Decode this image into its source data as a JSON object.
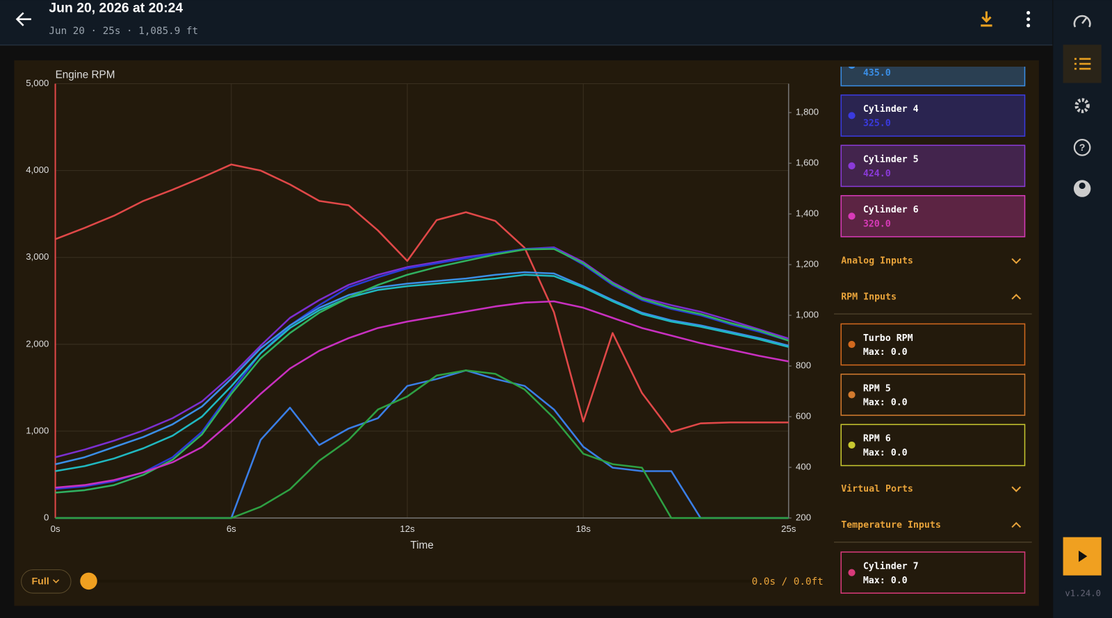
{
  "header": {
    "title": "Jun 20, 2026 at 20:24",
    "subtitle": "Jun 20 · 25s · 1,085.9 ft"
  },
  "chart_data": {
    "type": "line",
    "title": "Engine RPM",
    "x_label": "Time",
    "x": [
      0,
      1,
      2,
      3,
      4,
      5,
      6,
      7,
      8,
      9,
      10,
      11,
      12,
      13,
      14,
      15,
      16,
      17,
      18,
      19,
      20,
      21,
      22,
      23,
      24,
      25
    ],
    "xlim": [
      0,
      25
    ],
    "xticks": [
      {
        "value": 0,
        "label": "0s"
      },
      {
        "value": 6,
        "label": "6s"
      },
      {
        "value": 12,
        "label": "12s"
      },
      {
        "value": 18,
        "label": "18s"
      },
      {
        "value": 25,
        "label": "25s"
      }
    ],
    "ylim": [
      0,
      5000
    ],
    "yticks": [
      0,
      {
        "value": 1000,
        "label": "1,000"
      },
      {
        "value": 2000,
        "label": "2,000"
      },
      {
        "value": 3000,
        "label": "3,000"
      },
      {
        "value": 4000,
        "label": "4,000"
      },
      {
        "value": 5000,
        "label": "5,000"
      }
    ],
    "y2lim": [
      200,
      1914
    ],
    "y2ticks": [
      200,
      400,
      600,
      800,
      {
        "value": 1000,
        "label": "1,000"
      },
      {
        "value": 1200,
        "label": "1,200"
      },
      {
        "value": 1400,
        "label": "1,400"
      },
      {
        "value": 1600,
        "label": "1,600"
      },
      {
        "value": 1800,
        "label": "1,800"
      }
    ],
    "grid": true,
    "series": [
      {
        "color": "#e04848",
        "values": [
          3210,
          3340,
          3480,
          3650,
          3780,
          3920,
          4070,
          4000,
          3840,
          3650,
          3600,
          3310,
          2960,
          3430,
          3520,
          3420,
          3110,
          2370,
          1110,
          2130,
          1440,
          990,
          1090,
          1100,
          1100,
          1100
        ]
      },
      {
        "color": "#3a7ee6",
        "values": [
          0,
          0,
          0,
          0,
          0,
          0,
          0,
          900,
          1270,
          840,
          1030,
          1150,
          1520,
          1600,
          1700,
          1600,
          1520,
          1250,
          820,
          580,
          540,
          540,
          0,
          0,
          0,
          0
        ]
      },
      {
        "color": "#2ea043",
        "values": [
          0,
          0,
          0,
          0,
          0,
          0,
          0,
          130,
          330,
          660,
          900,
          1250,
          1400,
          1640,
          1700,
          1660,
          1480,
          1150,
          740,
          620,
          580,
          0,
          0,
          0,
          0,
          0
        ]
      },
      {
        "color": "#7b2fd0",
        "axis": "y2",
        "values": [
          440,
          470,
          505,
          545,
          594,
          660,
          762,
          880,
          990,
          1060,
          1120,
          1160,
          1190,
          1210,
          1230,
          1245,
          1262,
          1268,
          1210,
          1130,
          1070,
          1040,
          1014,
          980,
          944,
          908
        ]
      },
      {
        "color": "#2a3bd6",
        "axis": "y2",
        "values": [
          315,
          325,
          345,
          380,
          440,
          540,
          700,
          850,
          960,
          1040,
          1110,
          1150,
          1185,
          1205,
          1225,
          1245,
          1262,
          1265,
          1200,
          1120,
          1060,
          1025,
          1000,
          965,
          935,
          900
        ]
      },
      {
        "color": "#3a8ee6",
        "axis": "y2",
        "values": [
          412,
          440,
          480,
          520,
          570,
          640,
          750,
          870,
          960,
          1030,
          1080,
          1110,
          1125,
          1135,
          1145,
          1160,
          1170,
          1165,
          1115,
          1060,
          1010,
          980,
          960,
          935,
          910,
          880
        ]
      },
      {
        "color": "#20b8c0",
        "axis": "y2",
        "values": [
          385,
          405,
          435,
          475,
          525,
          600,
          720,
          850,
          950,
          1020,
          1070,
          1100,
          1115,
          1125,
          1135,
          1145,
          1160,
          1155,
          1110,
          1055,
          1005,
          975,
          955,
          930,
          905,
          875
        ]
      },
      {
        "color": "#30b060",
        "axis": "y2",
        "values": [
          300,
          310,
          330,
          370,
          430,
          530,
          690,
          830,
          930,
          1010,
          1070,
          1120,
          1160,
          1190,
          1215,
          1240,
          1260,
          1262,
          1205,
          1125,
          1065,
          1030,
          1005,
          970,
          940,
          900
        ]
      },
      {
        "color": "#c830c0",
        "axis": "y2",
        "values": [
          320,
          330,
          350,
          380,
          420,
          480,
          580,
          690,
          790,
          860,
          910,
          950,
          975,
          995,
          1015,
          1035,
          1050,
          1055,
          1030,
          990,
          950,
          920,
          890,
          865,
          840,
          818
        ]
      }
    ]
  },
  "sidebar": {
    "top_cards": [
      {
        "value": "435.0",
        "color": "#3a8ee6"
      },
      {
        "name": "Cylinder 4",
        "value": "325.0",
        "color": "#3a3ae0"
      },
      {
        "name": "Cylinder 5",
        "value": "424.0",
        "color": "#8a3ad8"
      },
      {
        "name": "Cylinder 6",
        "value": "320.0",
        "color": "#d83ab8"
      }
    ],
    "sections": [
      {
        "title": "Analog Inputs",
        "expanded": false
      },
      {
        "title": "RPM Inputs",
        "expanded": true,
        "cards": [
          {
            "name": "Turbo RPM",
            "value": "Max: 0.0",
            "color": "#d2691e"
          },
          {
            "name": "RPM 5",
            "value": "Max: 0.0",
            "color": "#d27a2e"
          },
          {
            "name": "RPM 6",
            "value": "Max: 0.0",
            "color": "#c8c830"
          }
        ]
      },
      {
        "title": "Virtual Ports",
        "expanded": false
      },
      {
        "title": "Temperature Inputs",
        "expanded": true,
        "cards": [
          {
            "name": "Cylinder 7",
            "value": "Max: 0.0",
            "color": "#d83a7a"
          }
        ]
      }
    ]
  },
  "controls": {
    "range": "Full",
    "position": "0.0s / 0.0ft"
  },
  "version": "v1.24.0"
}
